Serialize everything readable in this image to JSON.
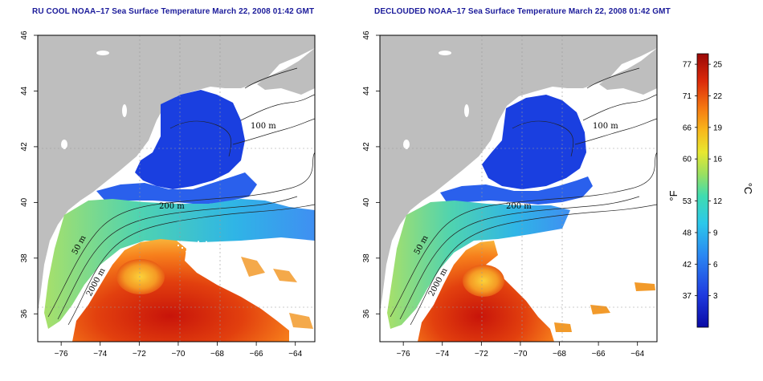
{
  "panels": [
    {
      "title": "RU COOL NOAA–17 Sea Surface Temperature March 22, 2008 01:42 GMT",
      "contours": [
        "100 m",
        "200 m",
        "50 m",
        "2000 m"
      ]
    },
    {
      "title": "DECLOUDED NOAA–17 Sea Surface Temperature March 22, 2008 01:42 GMT",
      "contours": [
        "100 m",
        "200 m",
        "50 m",
        "2000 m"
      ]
    }
  ],
  "axes": {
    "x_ticks": [
      "−76",
      "−74",
      "−72",
      "−70",
      "−68",
      "−66",
      "−64"
    ],
    "x_values": [
      -76,
      -74,
      -72,
      -70,
      -68,
      -66,
      -64
    ],
    "x_range": [
      -77.2,
      -63.0
    ],
    "y_ticks": [
      "36",
      "38",
      "40",
      "42",
      "44",
      "46"
    ],
    "y_values": [
      36,
      38,
      40,
      42,
      44,
      46
    ],
    "y_range": [
      35.0,
      46.0
    ]
  },
  "colorbar": {
    "fahrenheit_label": "°F",
    "celsius_label": "°C",
    "fahrenheit_ticks": [
      "77",
      "71",
      "66",
      "60",
      "53",
      "48",
      "42",
      "37"
    ],
    "celsius_ticks": [
      "25",
      "22",
      "19",
      "16",
      "12",
      "9",
      "6",
      "3"
    ],
    "celsius_values": [
      25,
      22,
      19,
      16,
      12,
      9,
      6,
      3
    ],
    "celsius_range": [
      0,
      26
    ]
  },
  "colors": {
    "land": "#bebebe",
    "cold": "#1535d8",
    "warm": "#cc1a0a",
    "title": "#1a1a9a"
  }
}
